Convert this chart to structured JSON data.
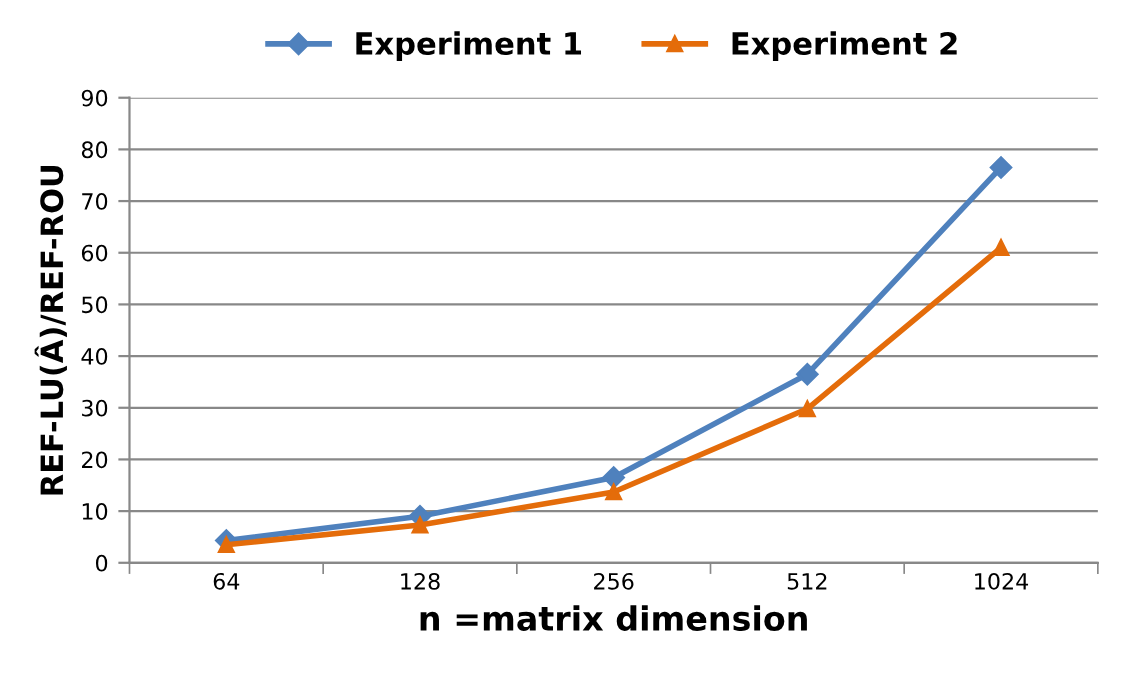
{
  "chart_data": {
    "type": "line",
    "xlabel": "n =matrix dimension",
    "ylabel": "REF-LU(Â)/REF-ROU",
    "categories": [
      "64",
      "128",
      "256",
      "512",
      "1024"
    ],
    "series": [
      {
        "name": "Experiment 1",
        "color": "#4f81bd",
        "marker": "diamond",
        "values": [
          4.3,
          9,
          16.5,
          36.5,
          76.5
        ]
      },
      {
        "name": "Experiment 2",
        "color": "#e46c0a",
        "marker": "triangle",
        "values": [
          3.5,
          7.3,
          13.7,
          29.8,
          61
        ]
      }
    ],
    "ylim": [
      0,
      90
    ],
    "yticks": [
      0,
      10,
      20,
      30,
      40,
      50,
      60,
      70,
      80,
      90
    ],
    "grid": "y",
    "legend": "top",
    "line_style": "solid"
  }
}
